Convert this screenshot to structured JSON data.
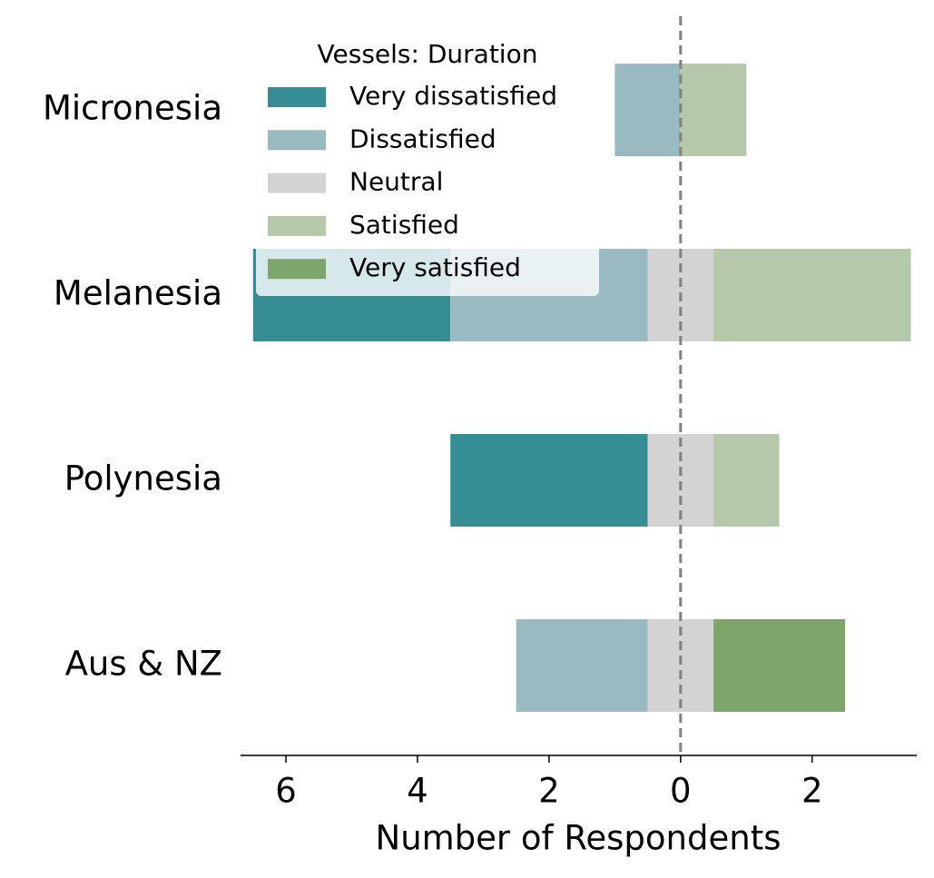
{
  "chart_data": {
    "type": "diverging-bar",
    "legend_title": "Vessels: Duration",
    "xlabel": "Number of Respondents",
    "categories": [
      "Micronesia",
      "Melanesia",
      "Polynesia",
      "Aus & NZ"
    ],
    "series": [
      {
        "name": "Very dissatisfied",
        "color": "#378d94",
        "values": [
          0,
          3,
          3,
          0
        ]
      },
      {
        "name": "Dissatisfied",
        "color": "#98bac0",
        "values": [
          1,
          3,
          0,
          2
        ]
      },
      {
        "name": "Neutral",
        "color": "#d3d3d3",
        "values": [
          0,
          1,
          1,
          1
        ]
      },
      {
        "name": "Satisfied",
        "color": "#b5c9aa",
        "values": [
          1,
          3,
          1,
          0
        ]
      },
      {
        "name": "Very satisfied",
        "color": "#7ea66a",
        "values": [
          0,
          0,
          0,
          2
        ]
      }
    ],
    "xlim": [
      -6.69,
      3.59
    ],
    "xticks": [
      {
        "value": -6,
        "label": "6"
      },
      {
        "value": -4,
        "label": "4"
      },
      {
        "value": -2,
        "label": "2"
      },
      0,
      2
    ]
  }
}
